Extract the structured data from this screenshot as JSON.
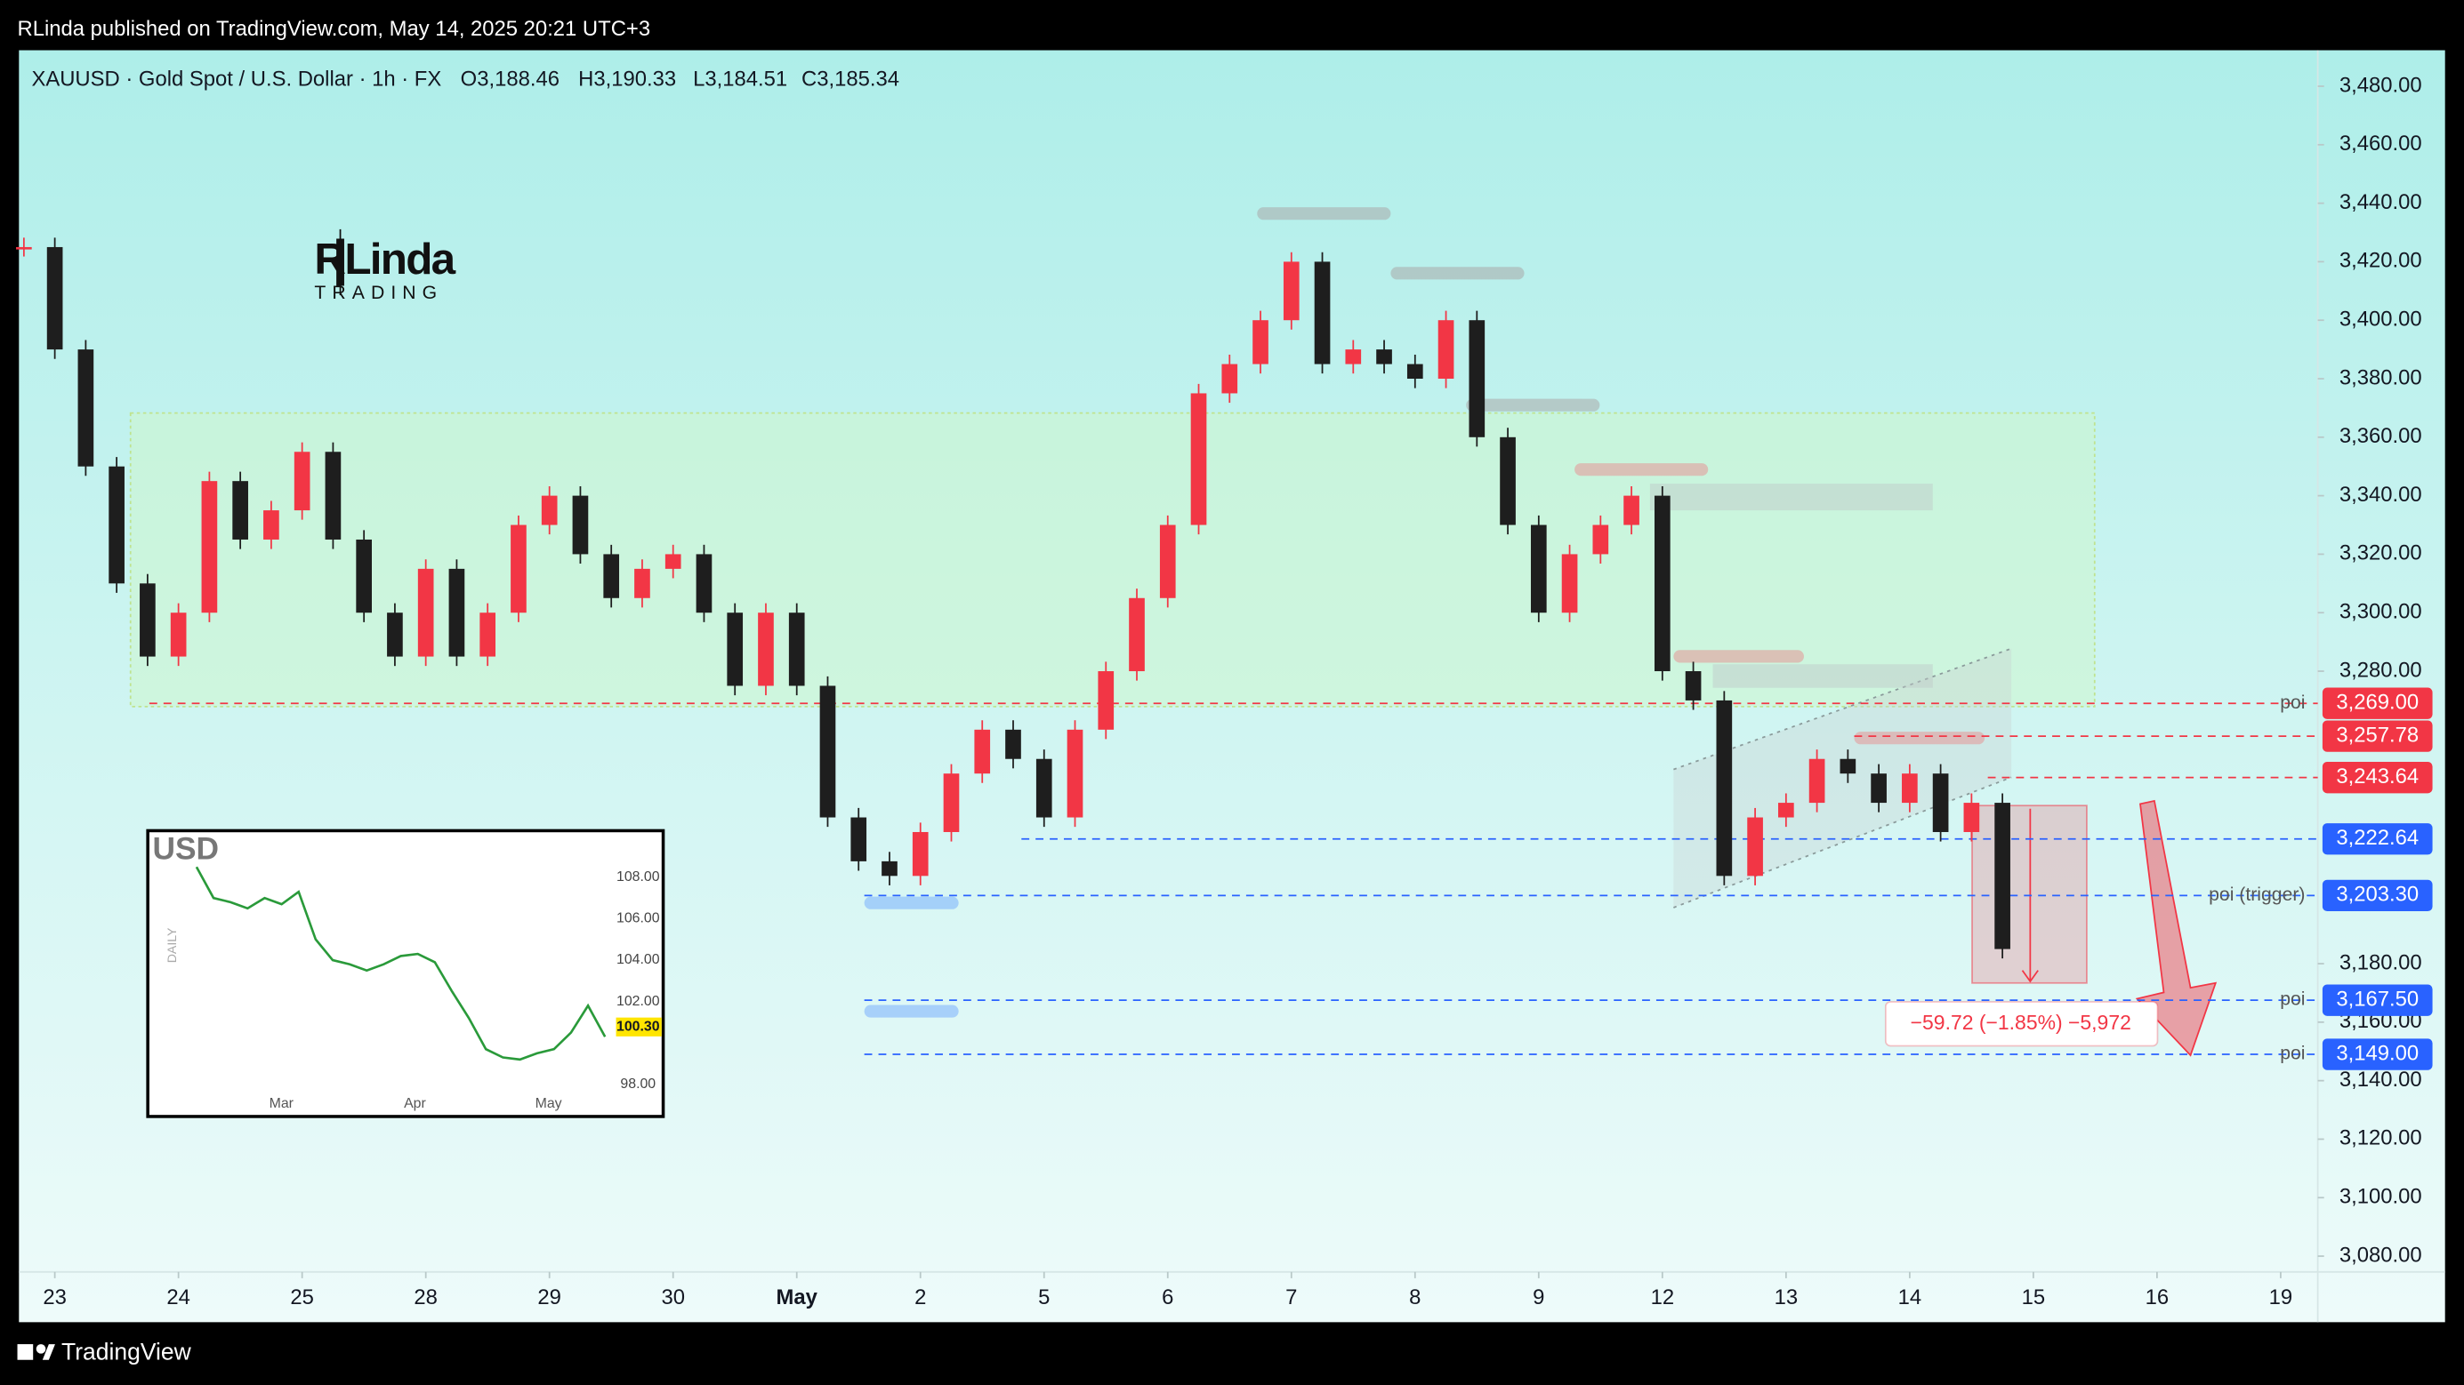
{
  "header": {
    "publisher": "RLinda published on TradingView.com, May 14, 2025 20:21 UTC+3"
  },
  "footer": {
    "brand": "TradingView"
  },
  "logo": {
    "name": "RLinda",
    "tagline": "TRADING"
  },
  "chart_data": {
    "type": "candlestick",
    "title": "XAUUSD · Gold Spot / U.S. Dollar · 1h · FX",
    "ohlc": [
      "O3,188.46",
      "H3,190.33",
      "L3,184.51",
      "C3,185.34"
    ],
    "up_color": "#f23645",
    "down_color": "#1e1e1e",
    "x": [
      -0.25,
      0,
      0.25,
      0.5,
      0.75,
      1,
      1.25,
      1.5,
      1.75,
      2,
      2.25,
      2.5,
      2.75,
      3,
      3.25,
      3.5,
      3.75,
      4,
      4.25,
      4.5,
      4.75,
      5,
      5.25,
      5.5,
      5.75,
      6,
      6.25,
      6.5,
      6.75,
      7,
      7.25,
      7.5,
      7.75,
      8,
      8.25,
      8.5,
      8.75,
      9,
      9.25,
      9.5,
      9.75,
      10,
      10.25,
      10.5,
      10.75,
      11,
      11.25,
      11.5,
      11.75,
      12,
      12.25,
      12.5,
      12.75,
      13,
      13.25,
      13.5,
      13.75,
      14,
      14.25,
      14.5,
      14.75,
      15,
      15.25,
      15.5,
      15.75
    ],
    "values": [
      3425,
      3390,
      3350,
      3310,
      3285,
      3300,
      3345,
      3325,
      3335,
      3355,
      3325,
      3300,
      3285,
      3315,
      3285,
      3300,
      3330,
      3340,
      3320,
      3305,
      3315,
      3320,
      3300,
      3275,
      3300,
      3275,
      3230,
      3215,
      3210,
      3225,
      3245,
      3260,
      3250,
      3230,
      3260,
      3280,
      3305,
      3330,
      3375,
      3385,
      3400,
      3420,
      3385,
      3390,
      3385,
      3380,
      3400,
      3360,
      3330,
      3300,
      3320,
      3330,
      3340,
      3280,
      3270,
      3210,
      3230,
      3235,
      3250,
      3245,
      3235,
      3245,
      3225,
      3235,
      3185
    ],
    "xlim": [
      -0.29,
      18.3
    ],
    "ylim": [
      3074.6,
      3492.3
    ],
    "xticks": [
      {
        "value": 0,
        "label": "23"
      },
      {
        "value": 1,
        "label": "24"
      },
      {
        "value": 2,
        "label": "25"
      },
      {
        "value": 3,
        "label": "28"
      },
      {
        "value": 4,
        "label": "29"
      },
      {
        "value": 5,
        "label": "30"
      },
      {
        "value": 6,
        "label": "May"
      },
      {
        "value": 7,
        "label": "2"
      },
      {
        "value": 8,
        "label": "5"
      },
      {
        "value": 9,
        "label": "6"
      },
      {
        "value": 10,
        "label": "7"
      },
      {
        "value": 11,
        "label": "8"
      },
      {
        "value": 12,
        "label": "9"
      },
      {
        "value": 13,
        "label": "12"
      },
      {
        "value": 14,
        "label": "13"
      },
      {
        "value": 15,
        "label": "14"
      },
      {
        "value": 16,
        "label": "15"
      },
      {
        "value": 17,
        "label": "16"
      },
      {
        "value": 18,
        "label": "19"
      }
    ],
    "yticks": [
      {
        "value": 3480,
        "label": "3,480.00"
      },
      {
        "value": 3460,
        "label": "3,460.00"
      },
      {
        "value": 3440,
        "label": "3,440.00"
      },
      {
        "value": 3420,
        "label": "3,420.00"
      },
      {
        "value": 3400,
        "label": "3,400.00"
      },
      {
        "value": 3380,
        "label": "3,380.00"
      },
      {
        "value": 3360,
        "label": "3,360.00"
      },
      {
        "value": 3340,
        "label": "3,340.00"
      },
      {
        "value": 3320,
        "label": "3,320.00"
      },
      {
        "value": 3300,
        "label": "3,300.00"
      },
      {
        "value": 3280,
        "label": "3,280.00"
      },
      {
        "value": 3180,
        "label": "3,180.00"
      },
      {
        "value": 3160,
        "label": "3,160.00"
      },
      {
        "value": 3140,
        "label": "3,140.00"
      },
      {
        "value": 3120,
        "label": "3,120.00"
      },
      {
        "value": 3100,
        "label": "3,100.00"
      },
      {
        "value": 3080,
        "label": "3,080.00"
      }
    ],
    "levels": [
      {
        "value": 3269,
        "label": "3,269.00",
        "color": "#f23645",
        "note": "poi"
      },
      {
        "value": 3257.78,
        "label": "3,257.78",
        "color": "#f23645"
      },
      {
        "value": 3243.64,
        "label": "3,243.64",
        "color": "#f23645"
      },
      {
        "value": 3222.64,
        "label": "3,222.64",
        "color": "#2962ff"
      },
      {
        "value": 3203.3,
        "label": "3,203.30",
        "color": "#2962ff",
        "note": "poi (trigger)"
      },
      {
        "value": 3167.5,
        "label": "3,167.50",
        "color": "#2962ff",
        "note": "poi"
      },
      {
        "value": 3149,
        "label": "3,149.00",
        "color": "#2962ff",
        "note": "poi"
      }
    ],
    "measure_label": "−59.72 (−1.85%) −5,972",
    "inset": {
      "title": "USD",
      "side_label": "DAILY",
      "last_price": "100.30",
      "ylim": [
        96.6,
        110.1
      ],
      "yticks": [
        {
          "value": 108,
          "label": "108.00"
        },
        {
          "value": 106,
          "label": "106.00"
        },
        {
          "value": 104,
          "label": "104.00"
        },
        {
          "value": 102,
          "label": "102.00"
        },
        {
          "value": 98,
          "label": "98.00"
        }
      ],
      "months": [
        "Mar",
        "Apr",
        "May"
      ],
      "values": [
        108.5,
        107,
        106.8,
        106.5,
        107,
        106.7,
        107.3,
        105,
        104,
        103.8,
        103.5,
        103.8,
        104.2,
        104.3,
        103.9,
        102.5,
        101.2,
        99.7,
        99.3,
        99.2,
        99.5,
        99.7,
        100.5,
        101.8,
        100.3
      ]
    }
  }
}
